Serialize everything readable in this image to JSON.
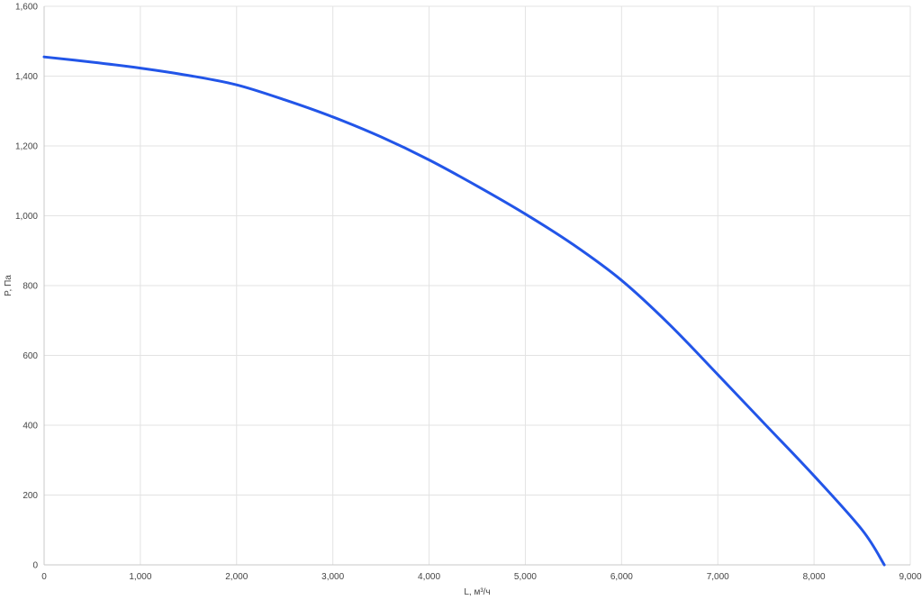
{
  "chart_data": {
    "type": "line",
    "xlabel": "L, м³/ч",
    "ylabel": "P, Па",
    "xlim": [
      0,
      9000
    ],
    "ylim": [
      0,
      1600
    ],
    "x_ticks": [
      "0",
      "1,000",
      "2,000",
      "3,000",
      "4,000",
      "5,000",
      "6,000",
      "7,000",
      "8,000",
      "9,000"
    ],
    "y_ticks": [
      "0",
      "200",
      "400",
      "600",
      "800",
      "1,000",
      "1,200",
      "1,400",
      "1,600"
    ],
    "grid": true,
    "legend": "none",
    "series": [
      {
        "color": "#2255e8",
        "x": [
          0,
          500,
          1000,
          1500,
          2000,
          2500,
          3000,
          3500,
          4000,
          4500,
          5000,
          5500,
          6000,
          6500,
          7000,
          7500,
          8000,
          8500,
          8730
        ],
        "y": [
          1455,
          1440,
          1423,
          1402,
          1375,
          1332,
          1283,
          1226,
          1160,
          1085,
          1005,
          917,
          815,
          688,
          545,
          400,
          255,
          100,
          0
        ]
      }
    ]
  }
}
